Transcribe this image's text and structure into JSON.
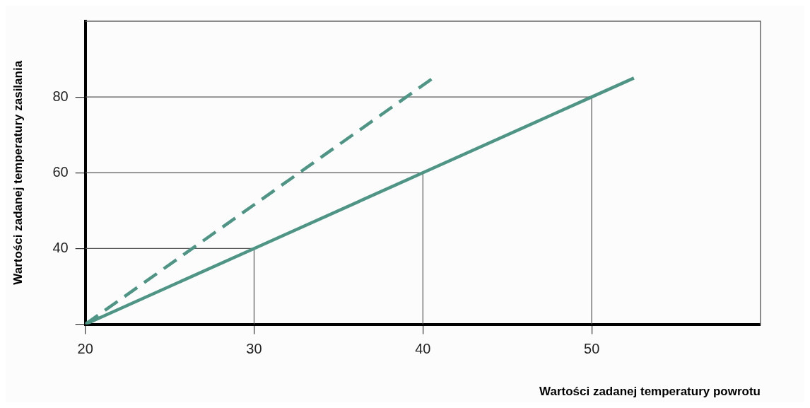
{
  "chart_data": {
    "type": "line",
    "xlabel": "Wartości zadanej temperatury powrotu",
    "ylabel": "Wartości zadanej temperatury zasilania",
    "xlim": [
      20,
      60
    ],
    "ylim": [
      20,
      100
    ],
    "xticks": [
      20,
      30,
      40,
      50
    ],
    "yticks": [
      {
        "value": 20,
        "label": null
      },
      40,
      60,
      80
    ],
    "grid": false,
    "legend": false,
    "marker": "none",
    "series": [
      {
        "color": "#4e9585",
        "x": [
          20,
          30,
          40,
          50,
          52.5
        ],
        "values": [
          20,
          40,
          60,
          80,
          85
        ],
        "line_style": "solid"
      },
      {
        "color": "#4e9585",
        "x": [
          20,
          40.6
        ],
        "values": [
          20,
          85
        ],
        "line_style": "dashed"
      },
      {
        "color": "#555555",
        "x": [
          20,
          30,
          30
        ],
        "values": [
          40,
          40,
          20
        ],
        "line_style": "solid"
      },
      {
        "color": "#555555",
        "x": [
          20,
          40,
          40
        ],
        "values": [
          60,
          60,
          20
        ],
        "line_style": "solid"
      },
      {
        "color": "#555555",
        "x": [
          20,
          50,
          50
        ],
        "values": [
          80,
          80,
          20
        ],
        "line_style": "solid"
      }
    ]
  }
}
